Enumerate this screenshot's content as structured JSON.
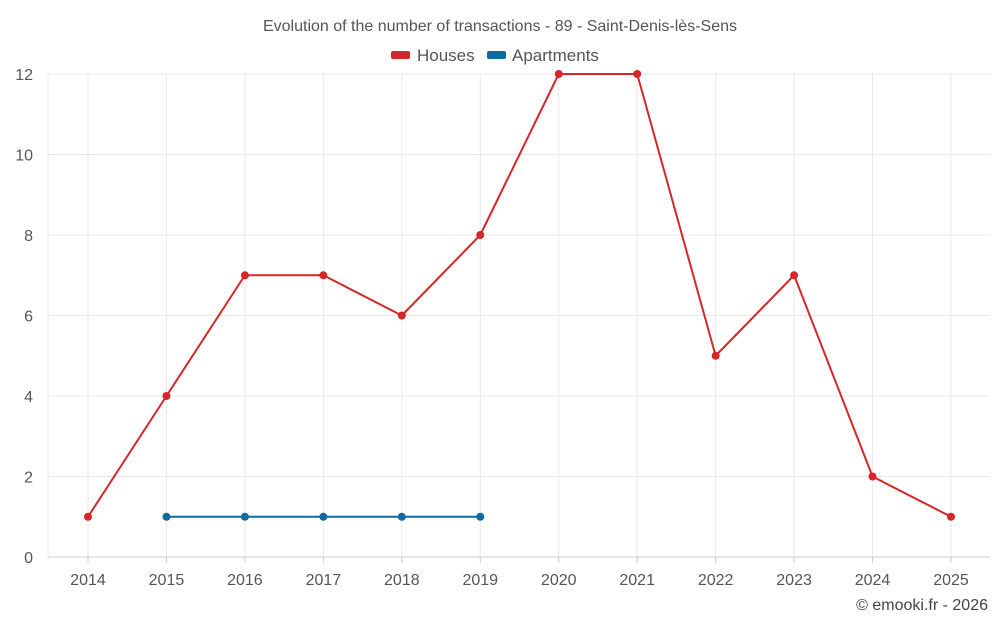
{
  "chart_data": {
    "type": "line",
    "title": "Evolution of the number of transactions - 89 - Saint-Denis-lès-Sens",
    "xlabel": "",
    "ylabel": "",
    "x": [
      "2014",
      "2015",
      "2016",
      "2017",
      "2018",
      "2019",
      "2020",
      "2021",
      "2022",
      "2023",
      "2024",
      "2025"
    ],
    "ylim": [
      0,
      12
    ],
    "yticks": [
      "0",
      "2",
      "4",
      "6",
      "8",
      "10",
      "12"
    ],
    "grid": true,
    "legend_position": "top-center",
    "series": [
      {
        "name": "Houses",
        "color": "#d62728",
        "values": [
          1,
          4,
          7,
          7,
          6,
          8,
          12,
          12,
          5,
          7,
          2,
          1
        ]
      },
      {
        "name": "Apartments",
        "color": "#0f6aa0",
        "values": [
          null,
          1,
          1,
          1,
          1,
          1,
          null,
          null,
          null,
          null,
          null,
          null
        ]
      }
    ]
  },
  "credit": "© emooki.fr - 2026"
}
